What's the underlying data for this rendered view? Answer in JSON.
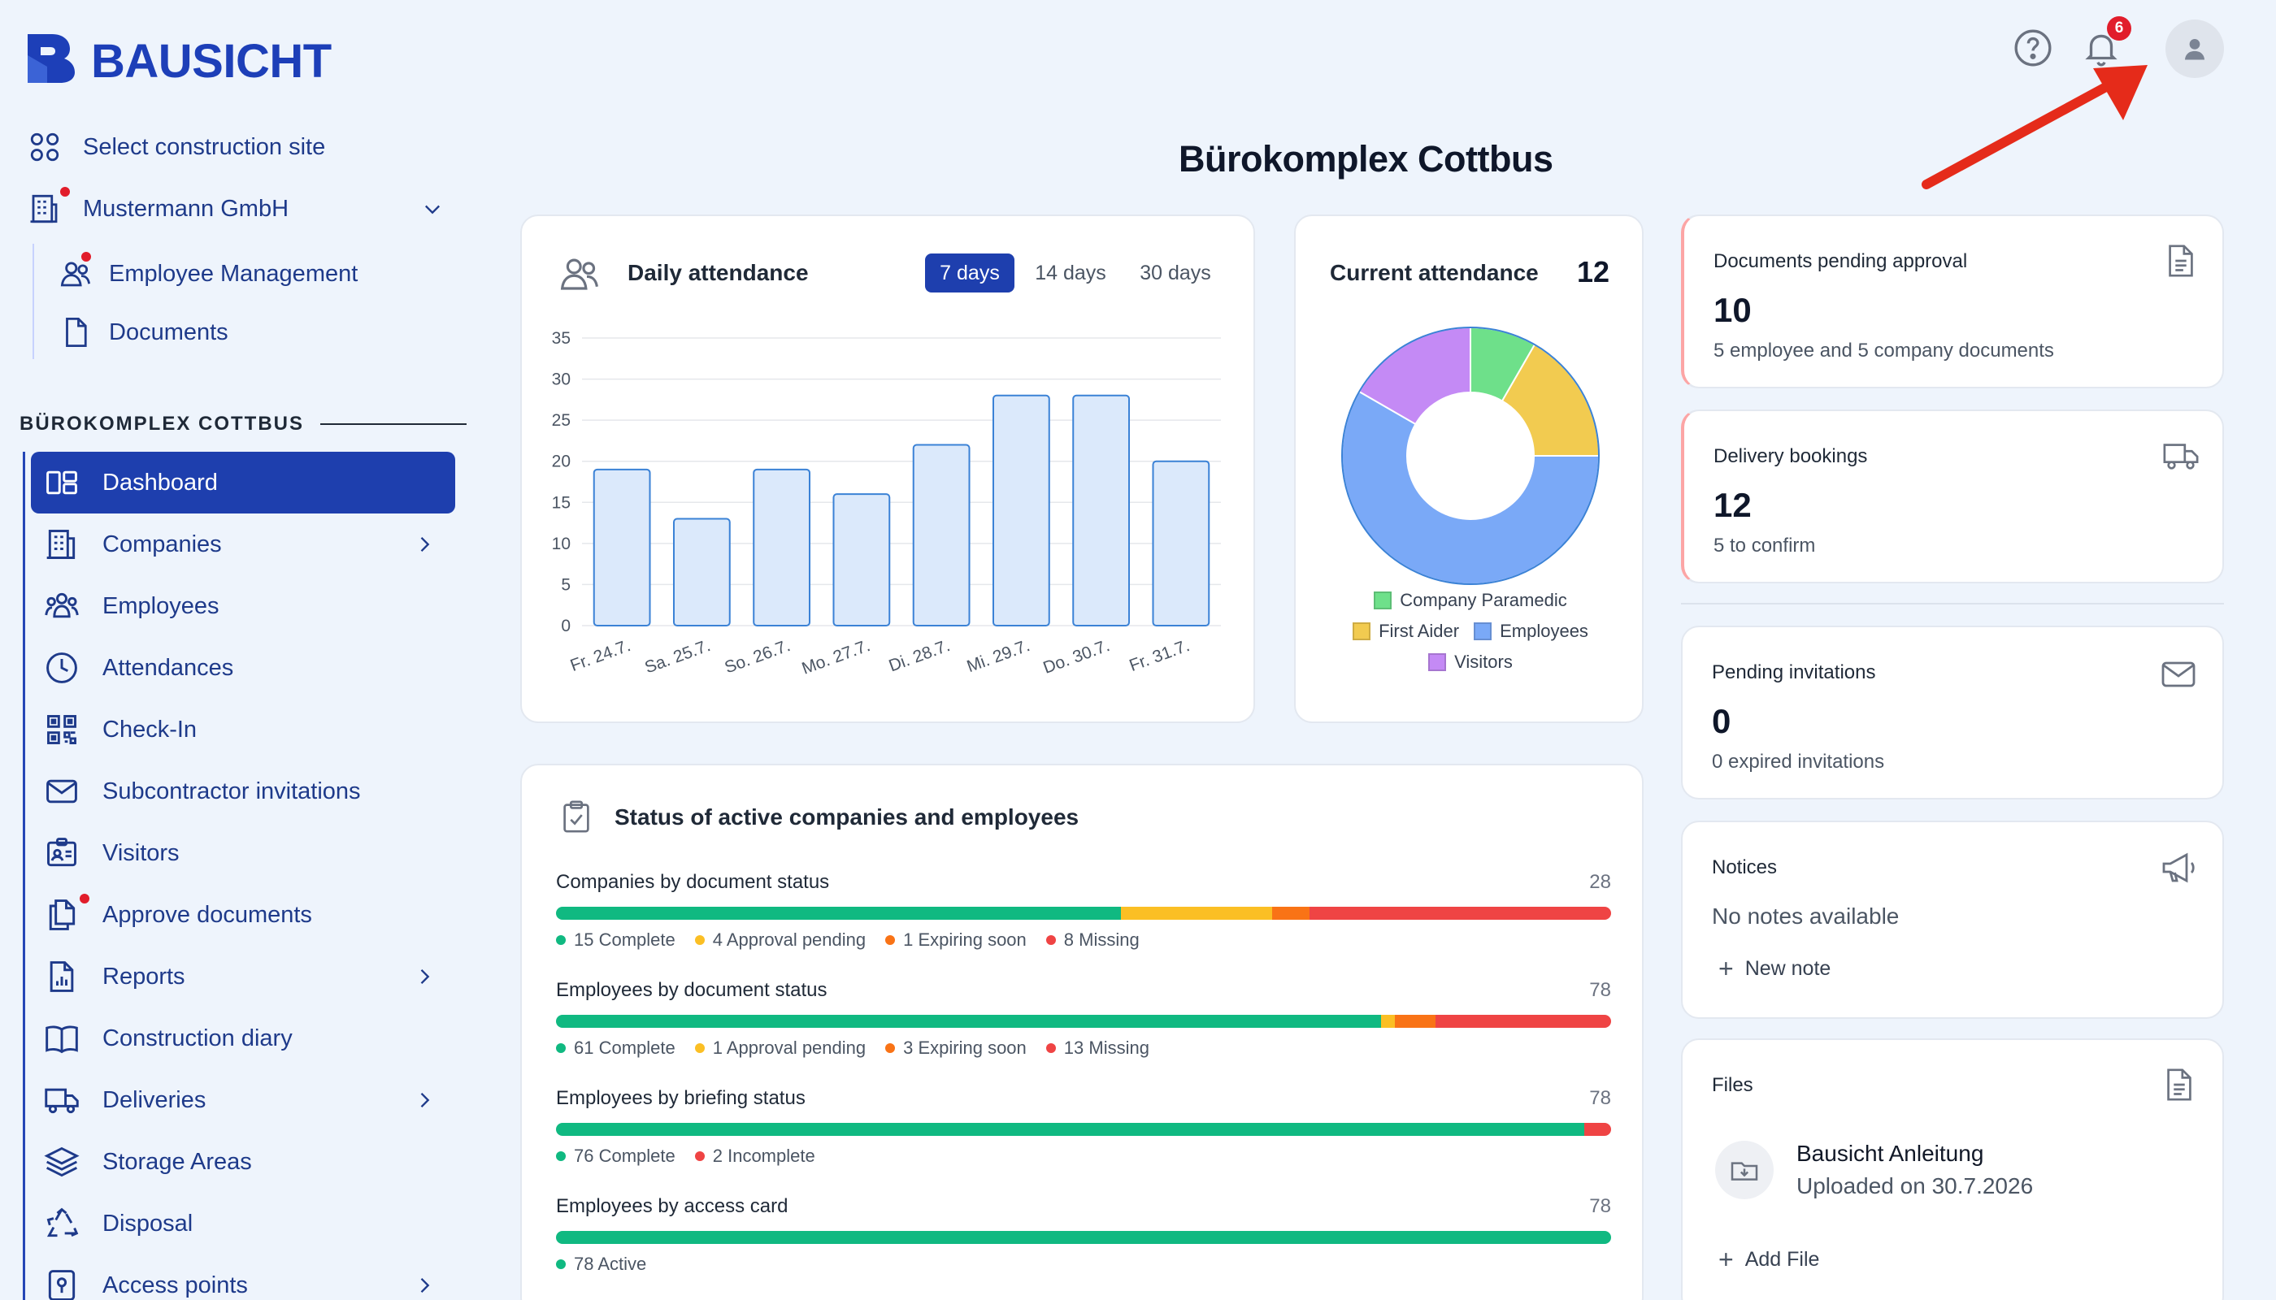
{
  "brand": {
    "name": "BAUSICHT"
  },
  "sidebar": {
    "select_site": "Select construction site",
    "company": "Mustermann GmbH",
    "company_sub": [
      {
        "label": "Employee Management"
      },
      {
        "label": "Documents"
      }
    ],
    "section_title": "BÜROKOMPLEX COTTBUS",
    "nav": [
      {
        "label": "Dashboard",
        "icon": "dashboard-icon",
        "active": true
      },
      {
        "label": "Companies",
        "icon": "building-icon",
        "chevron": true
      },
      {
        "label": "Employees",
        "icon": "people-icon"
      },
      {
        "label": "Attendances",
        "icon": "clock-icon"
      },
      {
        "label": "Check-In",
        "icon": "qr-code-icon"
      },
      {
        "label": "Subcontractor invitations",
        "icon": "mail-icon"
      },
      {
        "label": "Visitors",
        "icon": "visitor-badge-icon"
      },
      {
        "label": "Approve documents",
        "icon": "documents-icon"
      },
      {
        "label": "Reports",
        "icon": "report-icon",
        "chevron": true
      },
      {
        "label": "Construction diary",
        "icon": "book-icon"
      },
      {
        "label": "Deliveries",
        "icon": "truck-icon",
        "chevron": true
      },
      {
        "label": "Storage Areas",
        "icon": "layers-icon"
      },
      {
        "label": "Disposal",
        "icon": "recycle-icon"
      },
      {
        "label": "Access points",
        "icon": "access-point-icon",
        "chevron": true
      }
    ]
  },
  "header": {
    "page_title": "Bürokomplex Cottbus",
    "notification_count": "6"
  },
  "daily_attendance": {
    "title": "Daily attendance",
    "tabs": [
      "7 days",
      "14 days",
      "30 days"
    ],
    "active_tab": 0
  },
  "chart_data": [
    {
      "type": "bar",
      "title": "Daily attendance",
      "categories": [
        "Fr. 24.7.",
        "Sa. 25.7.",
        "So. 26.7.",
        "Mo. 27.7.",
        "Di. 28.7.",
        "Mi. 29.7.",
        "Do. 30.7.",
        "Fr. 31.7."
      ],
      "values": [
        19,
        13,
        19,
        16,
        22,
        28,
        28,
        20
      ],
      "ylim": [
        0,
        35
      ],
      "yticks": [
        0,
        5,
        10,
        15,
        20,
        25,
        30,
        35
      ],
      "grid": true,
      "colors": {
        "fill": "#dbe9fb",
        "stroke": "#3b82d6"
      }
    },
    {
      "type": "pie",
      "title": "Current attendance",
      "total": "12",
      "labels": [
        "Company Paramedic",
        "First Aider",
        "Employees",
        "Visitors"
      ],
      "values": [
        1,
        2,
        7,
        2
      ],
      "colors": [
        "#6ee08a",
        "#f2cb50",
        "#7aa9f7",
        "#c48af5"
      ],
      "legend": "bottom"
    }
  ],
  "stats": {
    "documents": {
      "label": "Documents pending approval",
      "value": "10",
      "sub": "5 employee and 5 company documents"
    },
    "delivery": {
      "label": "Delivery bookings",
      "value": "12",
      "sub": "5 to confirm"
    },
    "invitations": {
      "label": "Pending invitations",
      "value": "0",
      "sub": "0 expired invitations"
    },
    "notices": {
      "label": "Notices",
      "empty": "No notes available",
      "action": "New note"
    },
    "files": {
      "label": "Files",
      "file_name": "Bausicht Anleitung",
      "file_date": "Uploaded on 30.7.2026",
      "action": "Add File"
    }
  },
  "status": {
    "title": "Status of active companies and employees",
    "rows": [
      {
        "label": "Companies by document status",
        "total": "28",
        "segments": [
          {
            "text": "15 Complete",
            "value": 15,
            "color": "#10b981"
          },
          {
            "text": "4 Approval pending",
            "value": 4,
            "color": "#fbbf24"
          },
          {
            "text": "1 Expiring soon",
            "value": 1,
            "color": "#f97316"
          },
          {
            "text": "8 Missing",
            "value": 8,
            "color": "#ef4444"
          }
        ]
      },
      {
        "label": "Employees by document status",
        "total": "78",
        "segments": [
          {
            "text": "61 Complete",
            "value": 61,
            "color": "#10b981"
          },
          {
            "text": "1 Approval pending",
            "value": 1,
            "color": "#fbbf24"
          },
          {
            "text": "3 Expiring soon",
            "value": 3,
            "color": "#f97316"
          },
          {
            "text": "13 Missing",
            "value": 13,
            "color": "#ef4444"
          }
        ]
      },
      {
        "label": "Employees by briefing status",
        "total": "78",
        "segments": [
          {
            "text": "76 Complete",
            "value": 76,
            "color": "#10b981"
          },
          {
            "text": "2 Incomplete",
            "value": 2,
            "color": "#ef4444"
          }
        ]
      },
      {
        "label": "Employees by access card",
        "total": "78",
        "segments": [
          {
            "text": "78 Active",
            "value": 78,
            "color": "#10b981"
          }
        ]
      }
    ]
  }
}
